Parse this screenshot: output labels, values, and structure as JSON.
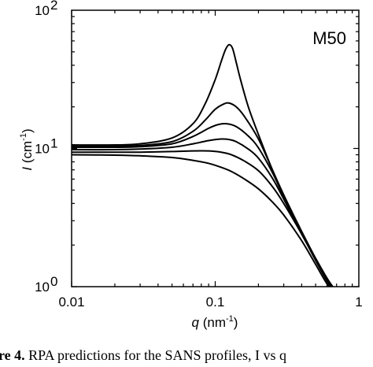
{
  "chart_data": {
    "type": "line",
    "panel_label": "M50",
    "xlabel": "q (nm⁻¹)",
    "ylabel": "I (cm⁻¹)",
    "xscale": "log",
    "yscale": "log",
    "xlim": [
      0.01,
      1
    ],
    "ylim": [
      1,
      100
    ],
    "x_ticks": [
      {
        "value": 0.01,
        "label": "0.01"
      },
      {
        "value": 0.1,
        "label": "0.1"
      },
      {
        "value": 1,
        "label": "1"
      }
    ],
    "y_ticks": [
      {
        "value": 1,
        "base": "10",
        "exp": "0"
      },
      {
        "value": 10,
        "base": "10",
        "exp": "1"
      },
      {
        "value": 100,
        "base": "10",
        "exp": "2"
      }
    ],
    "grid": false,
    "legend": false,
    "line_color": "#000000",
    "series": [
      {
        "x": [
          0.01,
          0.02,
          0.03,
          0.05,
          0.07,
          0.085,
          0.1,
          0.11,
          0.118,
          0.125,
          0.132,
          0.14,
          0.15,
          0.17,
          0.2,
          0.25,
          0.3,
          0.4,
          0.5,
          0.6,
          0.68
        ],
        "y": [
          10.6,
          10.6,
          10.8,
          11.9,
          15.1,
          21.0,
          31.5,
          42.5,
          52.0,
          56.3,
          53.0,
          42.0,
          31.5,
          20.0,
          12.6,
          7.0,
          4.6,
          2.5,
          1.6,
          1.15,
          0.95
        ]
      },
      {
        "x": [
          0.01,
          0.02,
          0.03,
          0.05,
          0.07,
          0.085,
          0.1,
          0.115,
          0.125,
          0.14,
          0.16,
          0.2,
          0.25,
          0.3,
          0.4,
          0.5,
          0.6,
          0.68
        ],
        "y": [
          10.4,
          10.4,
          10.5,
          11.2,
          13.3,
          16.0,
          19.2,
          21.0,
          21.3,
          20.0,
          17.0,
          11.7,
          7.0,
          4.6,
          2.5,
          1.6,
          1.15,
          0.95
        ]
      },
      {
        "x": [
          0.01,
          0.02,
          0.03,
          0.05,
          0.07,
          0.09,
          0.105,
          0.12,
          0.14,
          0.17,
          0.2,
          0.25,
          0.3,
          0.4,
          0.5,
          0.6,
          0.68
        ],
        "y": [
          10.2,
          10.2,
          10.3,
          10.8,
          12.2,
          14.0,
          14.9,
          15.1,
          14.4,
          12.3,
          10.1,
          6.7,
          4.5,
          2.5,
          1.6,
          1.15,
          0.95
        ]
      },
      {
        "x": [
          0.01,
          0.02,
          0.03,
          0.05,
          0.07,
          0.09,
          0.11,
          0.125,
          0.14,
          0.17,
          0.2,
          0.25,
          0.3,
          0.4,
          0.5,
          0.6,
          0.68
        ],
        "y": [
          9.8,
          9.8,
          9.9,
          10.2,
          10.8,
          11.4,
          11.7,
          11.6,
          11.2,
          9.9,
          8.5,
          6.1,
          4.3,
          2.4,
          1.6,
          1.15,
          0.95
        ]
      },
      {
        "x": [
          0.01,
          0.02,
          0.03,
          0.05,
          0.07,
          0.09,
          0.11,
          0.13,
          0.16,
          0.2,
          0.25,
          0.3,
          0.4,
          0.5,
          0.6,
          0.68
        ],
        "y": [
          9.4,
          9.4,
          9.4,
          9.5,
          9.6,
          9.6,
          9.4,
          9.0,
          8.1,
          6.9,
          5.3,
          4.0,
          2.4,
          1.55,
          1.1,
          0.92
        ]
      },
      {
        "x": [
          0.01,
          0.02,
          0.03,
          0.05,
          0.07,
          0.09,
          0.11,
          0.13,
          0.16,
          0.2,
          0.25,
          0.3,
          0.4,
          0.5,
          0.6,
          0.68
        ],
        "y": [
          9.0,
          8.95,
          8.85,
          8.6,
          8.2,
          7.8,
          7.3,
          6.8,
          6.0,
          5.1,
          4.1,
          3.3,
          2.15,
          1.45,
          1.05,
          0.9
        ]
      }
    ]
  },
  "caption": {
    "fig_label": "re 4.",
    "text": "  RPA predictions for the SANS profiles, I vs q"
  }
}
